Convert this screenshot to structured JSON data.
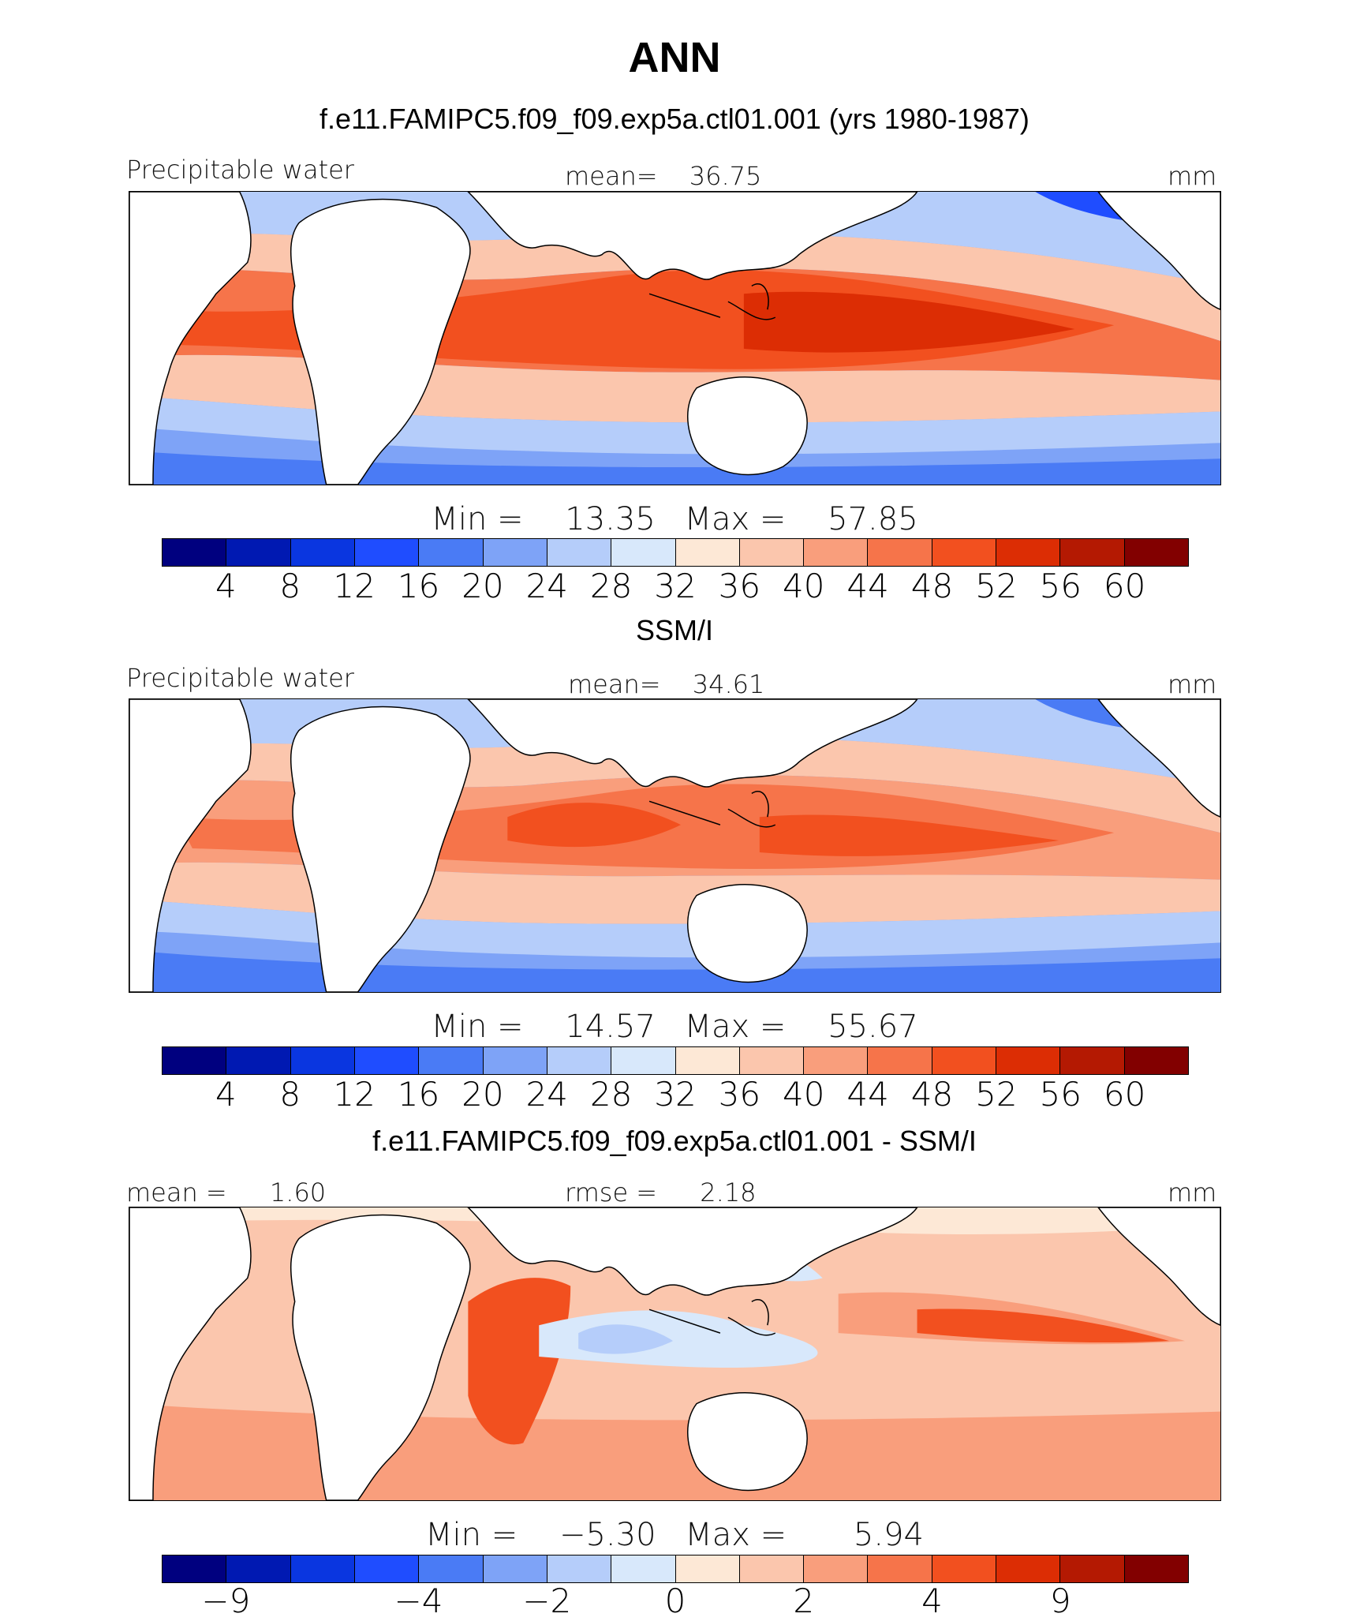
{
  "title": "ANN",
  "colors": [
    "#00007f",
    "#0019b2",
    "#0a36e0",
    "#1f4dff",
    "#4a7bf5",
    "#7ea3f7",
    "#b5cdfa",
    "#d8e8fb",
    "#fde8d6",
    "#fbc6ad",
    "#f99e7c",
    "#f6744a",
    "#f2501f",
    "#dc2d04",
    "#b41902",
    "#820000"
  ],
  "chart_data": [
    {
      "type": "heatmap",
      "title": "f.e11.FAMIPC5.f09_f09.exp5a.ctl01.001 (yrs 1980-1987)",
      "variable": "Precipitable water",
      "mean_label": "mean=",
      "mean": "36.75",
      "units": "mm",
      "min_label": "Min  =",
      "min": "13.35",
      "max_label": "Max  =",
      "max": "57.85",
      "levels": [
        "4",
        "8",
        "12",
        "16",
        "20",
        "24",
        "28",
        "32",
        "36",
        "40",
        "44",
        "48",
        "52",
        "56",
        "60"
      ]
    },
    {
      "type": "heatmap",
      "title": "SSM/I",
      "variable": "Precipitable water",
      "mean_label": "mean=",
      "mean": "34.61",
      "units": "mm",
      "min_label": "Min  =",
      "min": "14.57",
      "max_label": "Max  =",
      "max": "55.67",
      "levels": [
        "4",
        "8",
        "12",
        "16",
        "20",
        "24",
        "28",
        "32",
        "36",
        "40",
        "44",
        "48",
        "52",
        "56",
        "60"
      ]
    },
    {
      "type": "heatmap",
      "title": "f.e11.FAMIPC5.f09_f09.exp5a.ctl01.001 - SSM/I",
      "mean_label": "mean  =",
      "mean": "1.60",
      "rmse_label": "rmse  =",
      "rmse": "2.18",
      "units": "mm",
      "min_label": "Min  =",
      "min": "−5.30",
      "max_label": "Max  =",
      "max": "5.94",
      "levels": [
        "−9",
        "−4",
        "−2",
        "0",
        "2",
        "4",
        "9"
      ],
      "level_positions": [
        1,
        4,
        6,
        8,
        10,
        12,
        14
      ]
    }
  ]
}
